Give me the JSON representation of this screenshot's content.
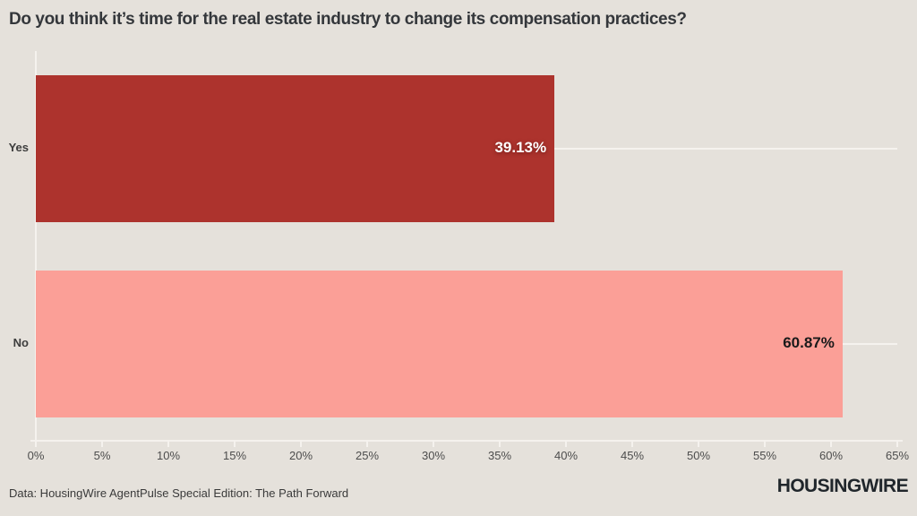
{
  "title": "Do you think it’s time for the real estate industry to change its compensation practices?",
  "footer": {
    "source": "Data: HousingWire AgentPulse Special Edition: The Path Forward",
    "logo": "HOUSINGWIRE"
  },
  "colors": {
    "background": "#e5e1db",
    "grid": "#f5f2ee",
    "title_text": "#34373b",
    "axis_text": "#4d4d4d",
    "category_text": "#3d3d3d",
    "source_text": "#3a3a3a",
    "logo_text": "#20262b"
  },
  "chart_data": {
    "type": "bar",
    "orientation": "horizontal",
    "title": "Do you think it’s time for the real estate industry to change its compensation practices?",
    "categories": [
      "Yes",
      "No"
    ],
    "values": [
      39.13,
      60.87
    ],
    "value_labels": [
      "39.13%",
      "60.87%"
    ],
    "bar_colors": [
      "#ad332d",
      "#fb9f97"
    ],
    "value_label_colors": [
      "#ffffff",
      "#1a1a1a"
    ],
    "xlabel": "",
    "ylabel": "",
    "xlim": [
      0,
      65
    ],
    "x_tick_values": [
      0,
      5,
      10,
      15,
      20,
      25,
      30,
      35,
      40,
      45,
      50,
      55,
      60,
      65
    ],
    "x_ticks": [
      "0%",
      "5%",
      "10%",
      "15%",
      "20%",
      "25%",
      "30%",
      "35%",
      "40%",
      "45%",
      "50%",
      "55%",
      "60%",
      "65%"
    ],
    "grid": "on",
    "legend": "none"
  }
}
